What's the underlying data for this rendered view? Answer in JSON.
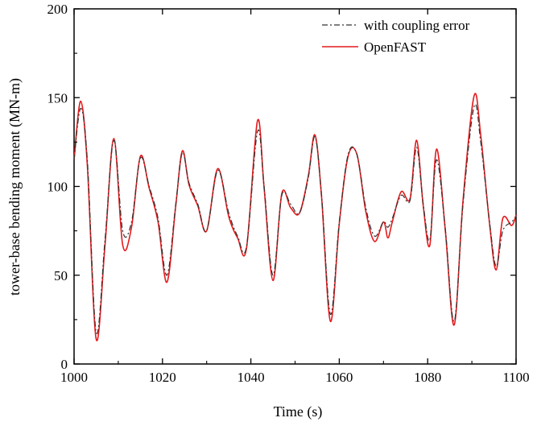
{
  "chart_data": {
    "type": "line",
    "xlabel": "Time (s)",
    "ylabel": "tower-base bending moment (MN-m)",
    "xlim": [
      1000,
      1100
    ],
    "ylim": [
      0,
      200
    ],
    "x_ticks": [
      "1000",
      "1020",
      "1040",
      "1060",
      "1080",
      "1100"
    ],
    "y_ticks": [
      "0",
      "50",
      "100",
      "150",
      "200"
    ],
    "grid": false,
    "legend_position": "top-right",
    "series": [
      {
        "name": "with coupling error",
        "color": "#333333",
        "style": "dash-dot",
        "x": [
          1000,
          1001.5,
          1003,
          1005,
          1007,
          1009,
          1011,
          1013,
          1015,
          1017,
          1019,
          1021,
          1023,
          1024.5,
          1026,
          1028,
          1030,
          1032.5,
          1035,
          1037,
          1039,
          1041.5,
          1043,
          1045,
          1047,
          1049,
          1051,
          1053,
          1054.5,
          1056,
          1058,
          1060,
          1062,
          1064,
          1066,
          1068,
          1070,
          1071,
          1072,
          1074,
          1076,
          1077.5,
          1079,
          1080.5,
          1082,
          1084,
          1086,
          1088,
          1090.5,
          1092,
          1094,
          1095.5,
          1097,
          1099,
          1100
        ],
        "y": [
          115,
          144,
          115,
          18,
          70,
          126,
          75,
          80,
          116,
          100,
          82,
          50,
          90,
          119,
          102,
          90,
          75,
          109,
          85,
          72,
          66,
          131,
          100,
          50,
          95,
          90,
          85,
          105,
          128,
          95,
          28,
          80,
          118,
          118,
          88,
          72,
          80,
          77,
          82,
          95,
          92,
          122,
          90,
          70,
          115,
          76,
          24,
          90,
          145,
          125,
          80,
          55,
          75,
          80,
          83
        ]
      },
      {
        "name": "OpenFAST",
        "color": "#e41a1c",
        "style": "solid",
        "x": [
          1000,
          1001.5,
          1003,
          1005,
          1007,
          1009,
          1011,
          1013,
          1015,
          1017,
          1019,
          1021,
          1023,
          1024.5,
          1026,
          1028,
          1030,
          1032.5,
          1035,
          1037,
          1039,
          1041.5,
          1043,
          1045,
          1047,
          1049,
          1051,
          1053,
          1054.5,
          1056,
          1058,
          1060,
          1062,
          1064,
          1066,
          1068,
          1070,
          1071,
          1072,
          1074,
          1076,
          1077.5,
          1079,
          1080.5,
          1082,
          1084,
          1086,
          1088,
          1090.5,
          1092,
          1094,
          1095.5,
          1097,
          1099,
          1100
        ],
        "y": [
          115,
          148,
          112,
          14,
          67,
          127,
          67,
          77,
          117,
          99,
          80,
          46,
          89,
          120,
          101,
          89,
          75,
          110,
          83,
          71,
          65,
          137,
          99,
          47,
          96,
          88,
          85,
          106,
          129,
          94,
          24,
          79,
          117,
          118,
          86,
          69,
          80,
          71,
          80,
          97,
          93,
          126,
          89,
          67,
          121,
          75,
          22,
          92,
          151,
          129,
          79,
          53,
          82,
          78,
          84
        ]
      }
    ]
  }
}
